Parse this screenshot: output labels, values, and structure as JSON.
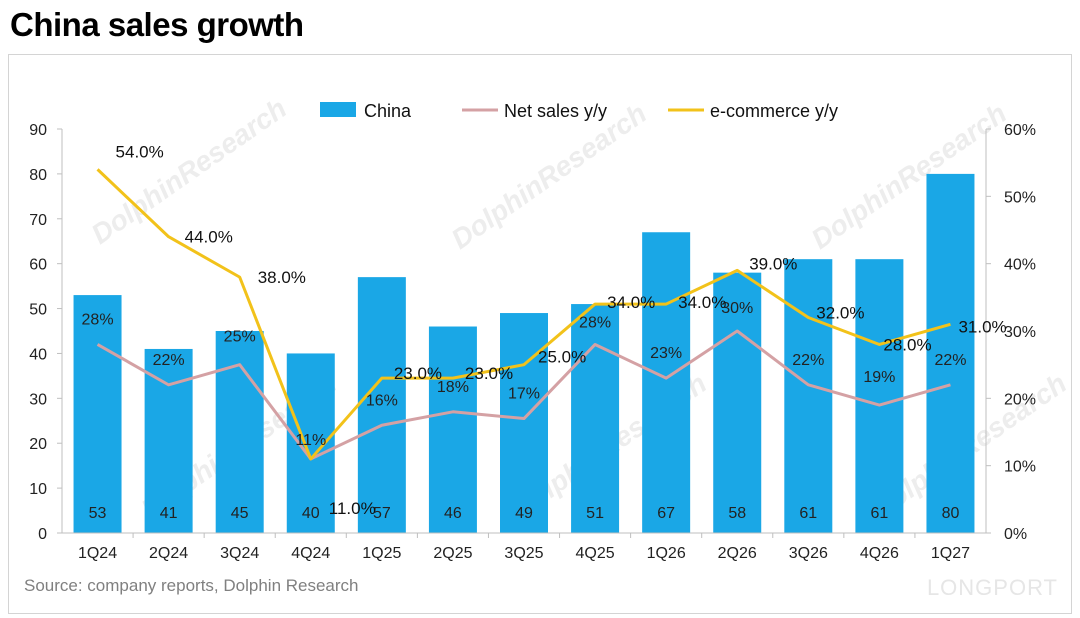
{
  "title": "China sales growth",
  "source": "Source: company reports, Dolphin Research",
  "watermark": "DolphinResearch",
  "brand": "LONGPORT",
  "colors": {
    "bar": "#1aa7e6",
    "net_sales": "#d4a1a4",
    "ecommerce": "#f2c21a",
    "axis": "#bfbfbf"
  },
  "chart_data": {
    "type": "bar",
    "categories": [
      "1Q24",
      "2Q24",
      "3Q24",
      "4Q24",
      "1Q25",
      "2Q25",
      "3Q25",
      "4Q25",
      "1Q26",
      "2Q26",
      "3Q26",
      "4Q26",
      "1Q27"
    ],
    "series": [
      {
        "name": "China",
        "type": "bar",
        "axis": "left",
        "values": [
          53,
          41,
          45,
          40,
          57,
          46,
          49,
          51,
          67,
          58,
          61,
          61,
          80
        ],
        "labels": [
          "53",
          "41",
          "45",
          "40",
          "57",
          "46",
          "49",
          "51",
          "67",
          "58",
          "61",
          "61",
          "80"
        ]
      },
      {
        "name": "Net sales y/y",
        "type": "line",
        "axis": "right",
        "values": [
          28,
          22,
          25,
          11,
          16,
          18,
          17,
          28,
          23,
          30,
          22,
          19,
          22
        ],
        "labels": [
          "28%",
          "22%",
          "25%",
          "11%",
          "16%",
          "18%",
          "17%",
          "28%",
          "23%",
          "30%",
          "22%",
          "19%",
          "22%"
        ]
      },
      {
        "name": "e-commerce y/y",
        "type": "line",
        "axis": "right",
        "values": [
          54,
          44,
          38,
          11,
          23,
          23,
          25,
          34,
          34,
          39,
          32,
          28,
          31
        ],
        "labels": [
          "54.0%",
          "44.0%",
          "38.0%",
          "11.0%",
          "23.0%",
          "23.0%",
          "25.0%",
          "34.0%",
          "34.0%",
          "39.0%",
          "32.0%",
          "28.0%",
          "31.0%"
        ]
      }
    ],
    "left_axis": {
      "ylim": [
        0,
        90
      ],
      "ticks": [
        "0",
        "10",
        "20",
        "30",
        "40",
        "50",
        "60",
        "70",
        "80",
        "90"
      ]
    },
    "right_axis": {
      "ylim": [
        0,
        60
      ],
      "ticks": [
        "0%",
        "10%",
        "20%",
        "30%",
        "40%",
        "50%",
        "60%"
      ]
    },
    "legend_position": "top",
    "grid": false
  }
}
